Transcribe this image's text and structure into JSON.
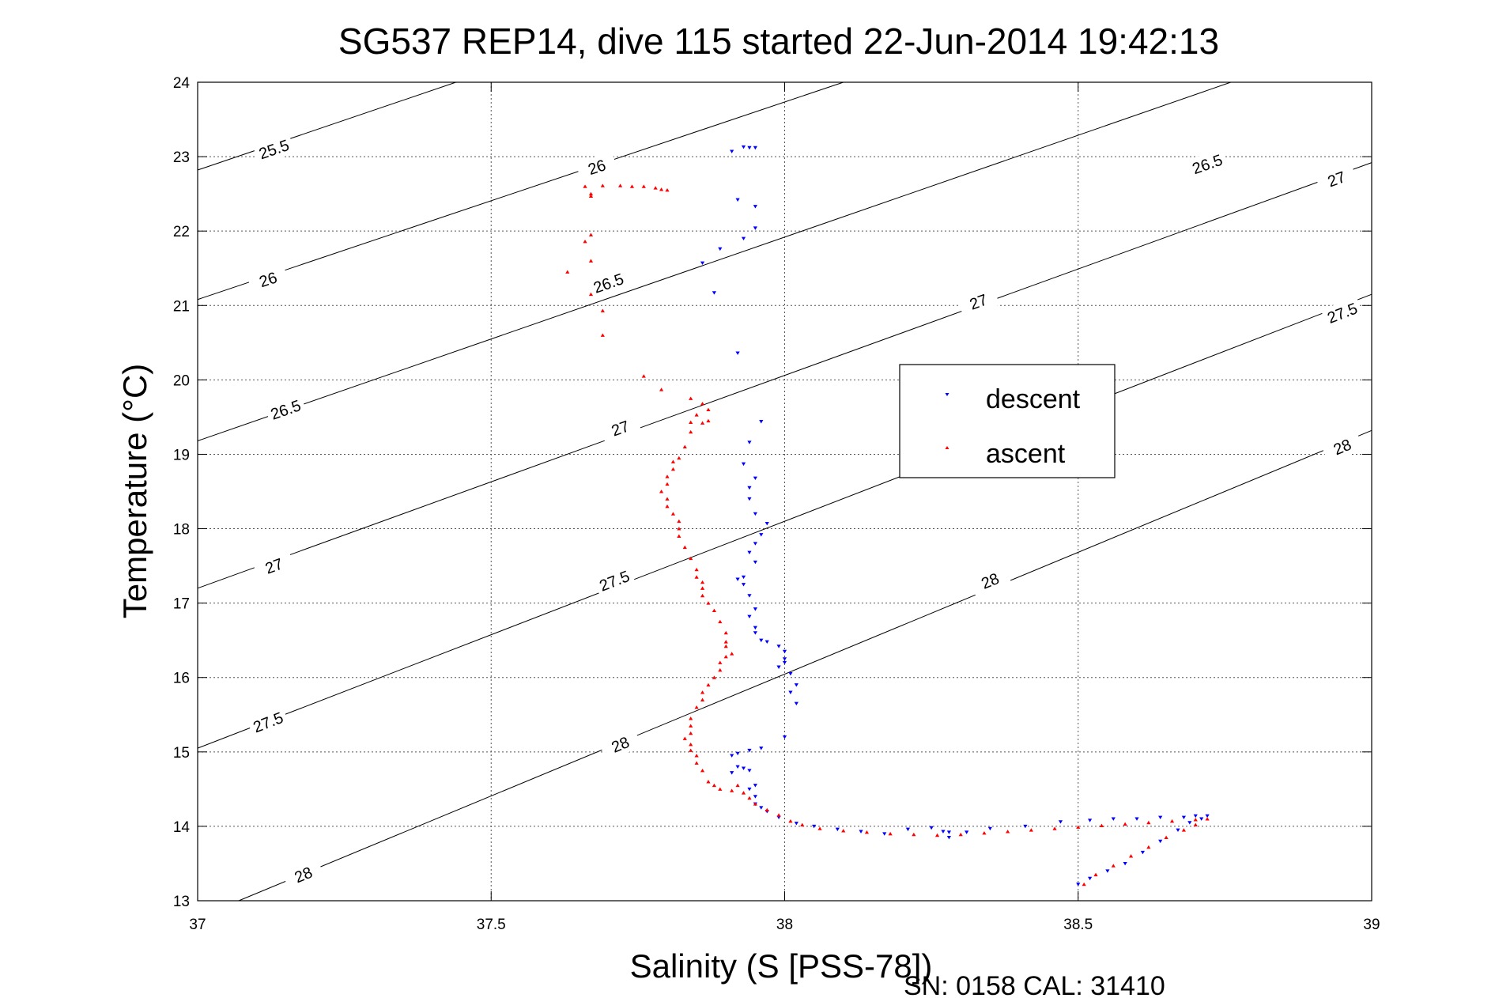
{
  "chart_data": {
    "type": "scatter",
    "title": "SG537 REP14, dive 115 started 22-Jun-2014 19:42:13",
    "xlabel": "Salinity (S [PSS-78])",
    "ylabel": "Temperature (°C)",
    "xlim": [
      37,
      39
    ],
    "ylim": [
      13,
      24
    ],
    "xticks": [
      37,
      37.5,
      38,
      38.5,
      39
    ],
    "xtick_labels": [
      "37",
      "37.5",
      "38",
      "38.5",
      "39"
    ],
    "yticks": [
      13,
      14,
      15,
      16,
      17,
      18,
      19,
      20,
      21,
      22,
      23,
      24
    ],
    "ytick_labels": [
      "13",
      "14",
      "15",
      "16",
      "17",
      "18",
      "19",
      "20",
      "21",
      "22",
      "23",
      "24"
    ],
    "grid": true,
    "legend_position": "right-center",
    "footer": "SN: 0158  CAL: 31410",
    "density_contours": [
      {
        "label": "25.5",
        "points": [
          [
            37,
            22.82
          ],
          [
            37.44,
            24.0
          ]
        ],
        "label_at": [
          [
            37.13,
            23.1
          ]
        ]
      },
      {
        "label": "26",
        "points": [
          [
            37,
            21.08
          ],
          [
            38.1,
            24.0
          ]
        ],
        "label_at": [
          [
            37.12,
            21.35
          ],
          [
            37.68,
            22.86
          ]
        ]
      },
      {
        "label": "26.5",
        "points": [
          [
            37,
            19.18
          ],
          [
            38.76,
            24.0
          ]
        ],
        "label_at": [
          [
            37.15,
            19.6
          ],
          [
            37.7,
            21.3
          ],
          [
            38.72,
            22.9
          ]
        ]
      },
      {
        "label": "27",
        "points": [
          [
            37,
            17.2
          ],
          [
            39,
            22.92
          ]
        ],
        "label_at": [
          [
            37.13,
            17.5
          ],
          [
            37.72,
            19.35
          ],
          [
            38.33,
            21.05
          ],
          [
            38.94,
            22.7
          ]
        ]
      },
      {
        "label": "27.5",
        "points": [
          [
            37,
            15.05
          ],
          [
            39,
            21.15
          ]
        ],
        "label_at": [
          [
            37.12,
            15.4
          ],
          [
            37.71,
            17.3
          ],
          [
            38.95,
            20.9
          ]
        ]
      },
      {
        "label": "28",
        "points": [
          [
            37.07,
            13.0
          ],
          [
            39,
            19.32
          ]
        ],
        "label_at": [
          [
            37.18,
            13.35
          ],
          [
            37.72,
            15.1
          ],
          [
            38.35,
            17.3
          ],
          [
            38.95,
            19.1
          ]
        ]
      }
    ],
    "series": [
      {
        "name": "descent",
        "color": "#0000ff",
        "marker": "triangle-down",
        "points": [
          [
            37.93,
            23.13
          ],
          [
            37.94,
            23.12
          ],
          [
            37.95,
            23.12
          ],
          [
            37.91,
            23.07
          ],
          [
            37.92,
            22.42
          ],
          [
            37.95,
            22.33
          ],
          [
            37.95,
            22.04
          ],
          [
            37.93,
            21.9
          ],
          [
            37.89,
            21.76
          ],
          [
            37.86,
            21.57
          ],
          [
            37.88,
            21.17
          ],
          [
            37.92,
            20.36
          ],
          [
            37.96,
            19.44
          ],
          [
            37.94,
            19.16
          ],
          [
            37.93,
            18.87
          ],
          [
            37.95,
            18.68
          ],
          [
            37.94,
            18.55
          ],
          [
            37.94,
            18.4
          ],
          [
            37.95,
            18.2
          ],
          [
            37.97,
            18.07
          ],
          [
            37.96,
            17.92
          ],
          [
            37.95,
            17.8
          ],
          [
            37.94,
            17.68
          ],
          [
            37.95,
            17.55
          ],
          [
            37.93,
            17.35
          ],
          [
            37.92,
            17.32
          ],
          [
            37.93,
            17.25
          ],
          [
            37.94,
            17.1
          ],
          [
            37.95,
            16.92
          ],
          [
            37.94,
            16.82
          ],
          [
            37.95,
            16.67
          ],
          [
            37.95,
            16.6
          ],
          [
            37.96,
            16.5
          ],
          [
            37.97,
            16.48
          ],
          [
            37.99,
            16.42
          ],
          [
            38.0,
            16.35
          ],
          [
            38.0,
            16.25
          ],
          [
            38.0,
            16.2
          ],
          [
            37.99,
            16.14
          ],
          [
            38.01,
            16.05
          ],
          [
            38.02,
            15.9
          ],
          [
            38.01,
            15.8
          ],
          [
            38.02,
            15.65
          ],
          [
            38.0,
            15.2
          ],
          [
            37.96,
            15.05
          ],
          [
            37.94,
            15.02
          ],
          [
            37.92,
            14.98
          ],
          [
            37.91,
            14.95
          ],
          [
            37.92,
            14.8
          ],
          [
            37.93,
            14.78
          ],
          [
            37.94,
            14.75
          ],
          [
            37.91,
            14.72
          ],
          [
            37.95,
            14.55
          ],
          [
            37.94,
            14.5
          ],
          [
            37.95,
            14.4
          ],
          [
            37.95,
            14.3
          ],
          [
            37.96,
            14.25
          ],
          [
            37.97,
            14.2
          ],
          [
            37.99,
            14.12
          ],
          [
            38.02,
            14.04
          ],
          [
            38.05,
            14.0
          ],
          [
            38.09,
            13.96
          ],
          [
            38.13,
            13.93
          ],
          [
            38.17,
            13.9
          ],
          [
            38.21,
            13.96
          ],
          [
            38.25,
            13.98
          ],
          [
            38.27,
            13.93
          ],
          [
            38.28,
            13.92
          ],
          [
            38.28,
            13.85
          ],
          [
            38.31,
            13.92
          ],
          [
            38.35,
            13.97
          ],
          [
            38.41,
            14.0
          ],
          [
            38.47,
            14.06
          ],
          [
            38.52,
            14.08
          ],
          [
            38.56,
            14.1
          ],
          [
            38.6,
            14.1
          ],
          [
            38.64,
            14.12
          ],
          [
            38.68,
            14.12
          ],
          [
            38.7,
            14.14
          ],
          [
            38.72,
            14.14
          ],
          [
            38.71,
            14.1
          ],
          [
            38.69,
            14.05
          ],
          [
            38.67,
            13.95
          ],
          [
            38.64,
            13.8
          ],
          [
            38.61,
            13.65
          ],
          [
            38.58,
            13.5
          ],
          [
            38.55,
            13.4
          ],
          [
            38.52,
            13.3
          ],
          [
            38.5,
            13.22
          ]
        ]
      },
      {
        "name": "ascent",
        "color": "#ff0000",
        "marker": "triangle-up",
        "points": [
          [
            37.66,
            22.6
          ],
          [
            37.69,
            22.61
          ],
          [
            37.72,
            22.61
          ],
          [
            37.74,
            22.6
          ],
          [
            37.76,
            22.6
          ],
          [
            37.78,
            22.58
          ],
          [
            37.79,
            22.56
          ],
          [
            37.8,
            22.55
          ],
          [
            37.67,
            22.5
          ],
          [
            37.67,
            22.47
          ],
          [
            37.67,
            21.95
          ],
          [
            37.66,
            21.86
          ],
          [
            37.67,
            21.6
          ],
          [
            37.63,
            21.45
          ],
          [
            37.67,
            21.15
          ],
          [
            37.69,
            20.93
          ],
          [
            37.69,
            20.6
          ],
          [
            37.76,
            20.05
          ],
          [
            37.79,
            19.87
          ],
          [
            37.84,
            19.75
          ],
          [
            37.86,
            19.68
          ],
          [
            37.87,
            19.6
          ],
          [
            37.85,
            19.53
          ],
          [
            37.84,
            19.43
          ],
          [
            37.86,
            19.42
          ],
          [
            37.87,
            19.45
          ],
          [
            37.84,
            19.3
          ],
          [
            37.83,
            19.1
          ],
          [
            37.82,
            18.95
          ],
          [
            37.81,
            18.9
          ],
          [
            37.81,
            18.8
          ],
          [
            37.8,
            18.7
          ],
          [
            37.8,
            18.6
          ],
          [
            37.79,
            18.5
          ],
          [
            37.8,
            18.4
          ],
          [
            37.8,
            18.3
          ],
          [
            37.81,
            18.2
          ],
          [
            37.82,
            18.1
          ],
          [
            37.82,
            18.0
          ],
          [
            37.82,
            17.9
          ],
          [
            37.83,
            17.75
          ],
          [
            37.84,
            17.6
          ],
          [
            37.85,
            17.45
          ],
          [
            37.85,
            17.35
          ],
          [
            37.86,
            17.28
          ],
          [
            37.86,
            17.2
          ],
          [
            37.86,
            17.1
          ],
          [
            37.87,
            17.0
          ],
          [
            37.88,
            16.9
          ],
          [
            37.89,
            16.75
          ],
          [
            37.9,
            16.6
          ],
          [
            37.9,
            16.48
          ],
          [
            37.9,
            16.42
          ],
          [
            37.91,
            16.32
          ],
          [
            37.9,
            16.28
          ],
          [
            37.89,
            16.2
          ],
          [
            37.89,
            16.1
          ],
          [
            37.88,
            16.0
          ],
          [
            37.87,
            15.9
          ],
          [
            37.86,
            15.8
          ],
          [
            37.86,
            15.7
          ],
          [
            37.85,
            15.6
          ],
          [
            37.84,
            15.45
          ],
          [
            37.84,
            15.35
          ],
          [
            37.84,
            15.25
          ],
          [
            37.83,
            15.18
          ],
          [
            37.84,
            15.1
          ],
          [
            37.84,
            15.02
          ],
          [
            37.85,
            14.95
          ],
          [
            37.85,
            14.85
          ],
          [
            37.86,
            14.75
          ],
          [
            37.87,
            14.6
          ],
          [
            37.88,
            14.55
          ],
          [
            37.89,
            14.5
          ],
          [
            37.91,
            14.48
          ],
          [
            37.92,
            14.55
          ],
          [
            37.93,
            14.45
          ],
          [
            37.94,
            14.38
          ],
          [
            37.95,
            14.3
          ],
          [
            37.97,
            14.22
          ],
          [
            37.99,
            14.15
          ],
          [
            38.01,
            14.07
          ],
          [
            38.03,
            14.02
          ],
          [
            38.06,
            13.97
          ],
          [
            38.1,
            13.94
          ],
          [
            38.14,
            13.92
          ],
          [
            38.18,
            13.9
          ],
          [
            38.22,
            13.89
          ],
          [
            38.26,
            13.88
          ],
          [
            38.3,
            13.89
          ],
          [
            38.34,
            13.91
          ],
          [
            38.38,
            13.93
          ],
          [
            38.42,
            13.95
          ],
          [
            38.46,
            13.97
          ],
          [
            38.5,
            13.99
          ],
          [
            38.54,
            14.01
          ],
          [
            38.58,
            14.03
          ],
          [
            38.62,
            14.05
          ],
          [
            38.66,
            14.07
          ],
          [
            38.7,
            14.09
          ],
          [
            38.72,
            14.1
          ],
          [
            38.7,
            14.02
          ],
          [
            38.68,
            13.95
          ],
          [
            38.65,
            13.85
          ],
          [
            38.62,
            13.72
          ],
          [
            38.59,
            13.6
          ],
          [
            38.56,
            13.47
          ],
          [
            38.53,
            13.35
          ],
          [
            38.51,
            13.22
          ]
        ]
      }
    ]
  }
}
